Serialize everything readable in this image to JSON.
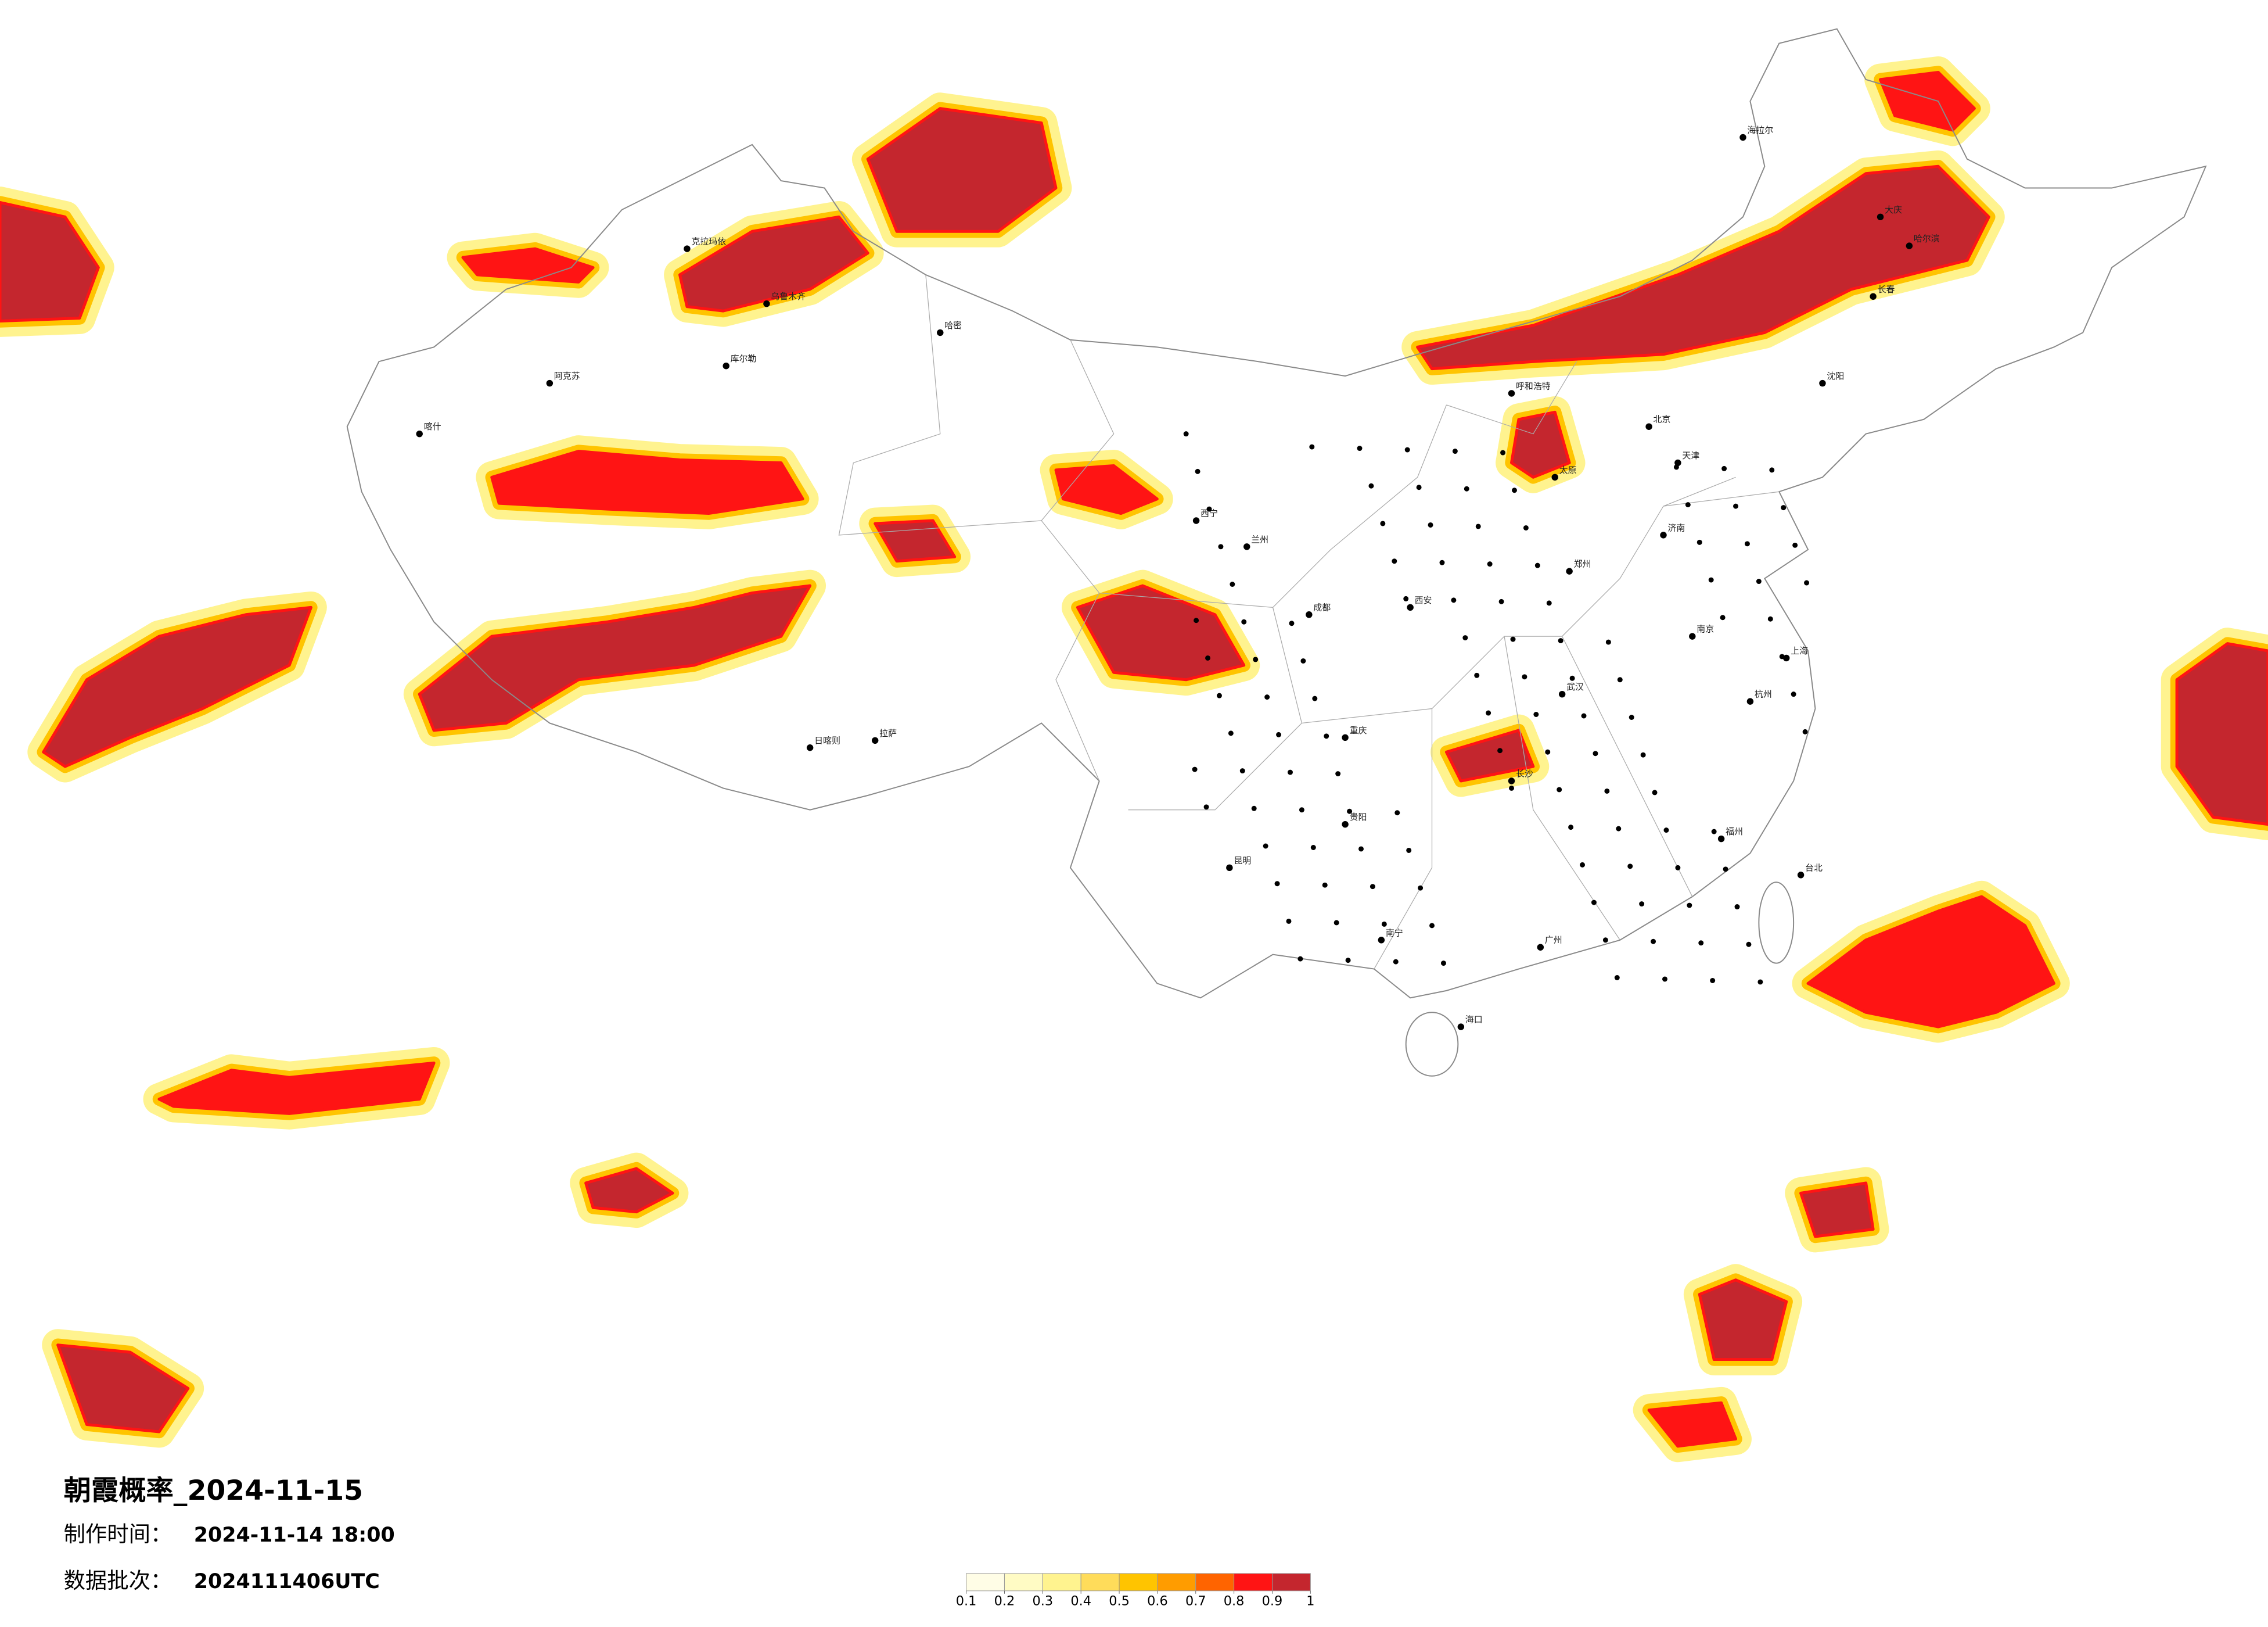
{
  "header": {
    "title": "朝霞概率_2024-11-15",
    "made_label": "制作时间：",
    "made_time": "2024-11-14 18:00",
    "batch_label": "数据批次：",
    "batch": "2024111406UTC"
  },
  "legend": {
    "ticks": [
      0.1,
      0.2,
      0.3,
      0.4,
      0.5,
      0.6,
      0.7,
      0.8,
      0.9,
      1
    ],
    "colors": [
      "#fffde6",
      "#fffbc4",
      "#fff38f",
      "#ffdc5a",
      "#ffc400",
      "#ff9c00",
      "#ff6400",
      "#ff1414",
      "#c4262e"
    ]
  },
  "cities": [
    "乌鲁木齐",
    "克拉玛依",
    "库尔勒",
    "阿克苏",
    "喀什",
    "哈密",
    "拉萨",
    "日喀则",
    "西宁",
    "兰州",
    "成都",
    "重庆",
    "昆明",
    "贵阳",
    "南宁",
    "广州",
    "海口",
    "长沙",
    "武汉",
    "南京",
    "上海",
    "杭州",
    "福州",
    "台北",
    "北京",
    "天津",
    "济南",
    "郑州",
    "西安",
    "太原",
    "呼和浩特",
    "沈阳",
    "长春",
    "哈尔滨",
    "海拉尔",
    "大庆"
  ]
}
